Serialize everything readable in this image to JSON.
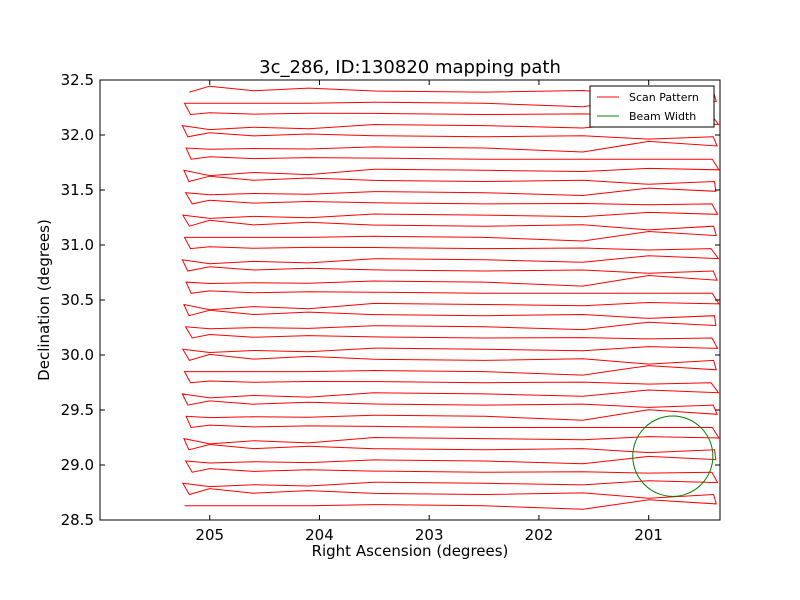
{
  "chart_data": {
    "type": "line",
    "title": "3c_286, ID:130820 mapping path",
    "xlabel": "Right Ascension (degrees)",
    "ylabel": "Declination (degrees)",
    "xlim": [
      206.0,
      200.35
    ],
    "ylim": [
      28.5,
      32.5
    ],
    "x_inverted": true,
    "xticks": [
      205,
      204,
      203,
      202,
      201
    ],
    "xtick_labels": [
      "205",
      "204",
      "203",
      "202",
      "201"
    ],
    "yticks": [
      28.5,
      29.0,
      29.5,
      30.0,
      30.5,
      31.0,
      31.5,
      32.0,
      32.5
    ],
    "ytick_labels": [
      "28.5",
      "29.0",
      "29.5",
      "30.0",
      "30.5",
      "31.0",
      "31.5",
      "32.0",
      "32.5"
    ],
    "grid": false,
    "legend_position": "top-right",
    "series": [
      {
        "name": "Scan Pattern",
        "color": "#ff0000",
        "scan_rows": 38,
        "dec_first": 28.63,
        "dec_last": 32.39,
        "ra_left_edge": 205.2,
        "ra_right_edge": 200.4,
        "ra_turn_zone": 201.0,
        "wiggle_amplitude": 0.06
      },
      {
        "name": "Beam Width",
        "color": "#008000",
        "shape": "circle",
        "center_ra": 200.78,
        "center_dec": 29.08,
        "radius_deg": 0.365
      }
    ]
  }
}
